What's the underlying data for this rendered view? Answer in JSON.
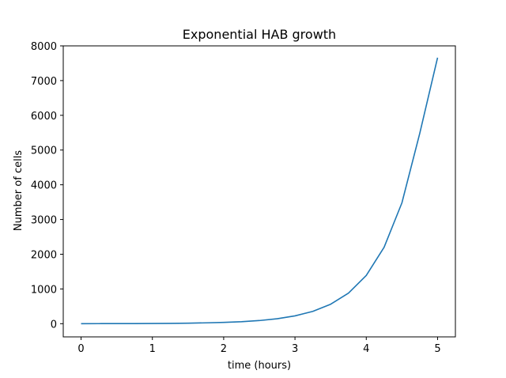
{
  "chart_data": {
    "type": "line",
    "title": "Exponential HAB growth",
    "xlabel": "time (hours)",
    "ylabel": "Number of cells",
    "xlim": [
      -0.25,
      5.25
    ],
    "ylim": [
      -380,
      8000
    ],
    "x_ticks": [
      0,
      1,
      2,
      3,
      4,
      5
    ],
    "y_ticks": [
      0,
      1000,
      2000,
      3000,
      4000,
      5000,
      6000,
      7000,
      8000
    ],
    "grid": false,
    "series": [
      {
        "color": "#1f77b4",
        "x": [
          0,
          0.25,
          0.5,
          0.75,
          1,
          1.25,
          1.5,
          1.75,
          2,
          2.25,
          2.5,
          2.75,
          3,
          3.25,
          3.5,
          3.75,
          4,
          4.25,
          4.5,
          4.75,
          5
        ],
        "y": [
          1,
          1.6,
          2.4,
          4,
          6,
          9.4,
          15,
          24,
          36,
          57,
          90,
          142,
          225,
          355,
          560,
          880,
          1390,
          2200,
          3480,
          5480,
          7660
        ]
      }
    ]
  }
}
